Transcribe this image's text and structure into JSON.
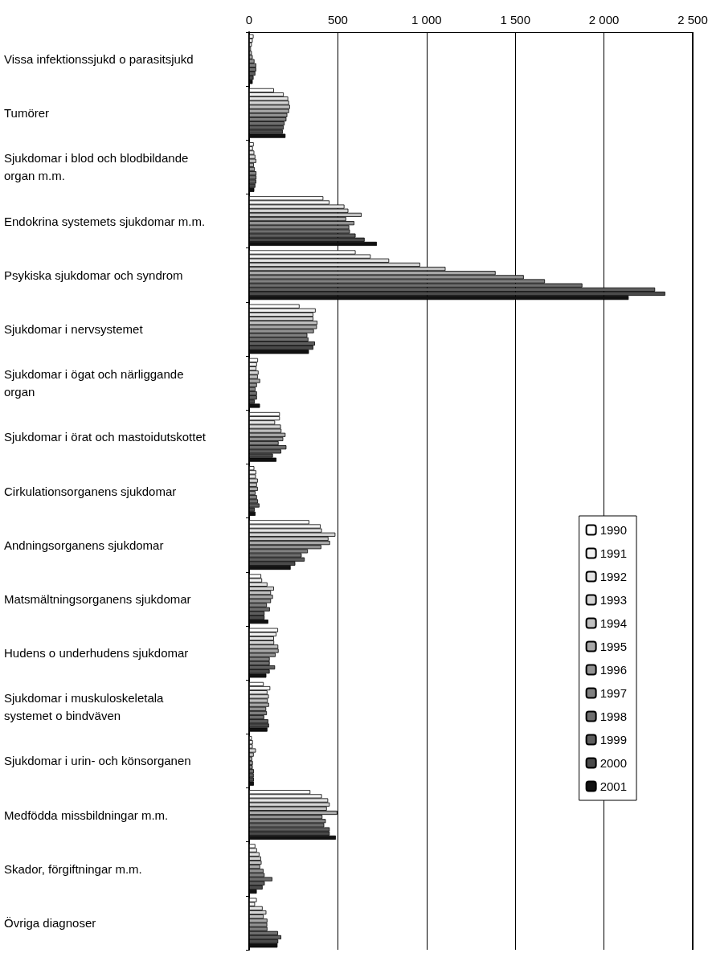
{
  "chart_data": {
    "type": "bar",
    "orientation": "horizontal",
    "categories": [
      "Vissa infektionssjukd o parasitsjukd",
      "Tumörer",
      "Sjukdomar i blod och blodbildande organ m.m.",
      "Endokrina systemets sjukdomar m.m.",
      "Psykiska sjukdomar och syndrom",
      "Sjukdomar i nervsystemet",
      "Sjukdomar i ögat och närliggande organ",
      "Sjukdomar i örat och mastoidutskottet",
      "Cirkulationsorganens sjukdomar",
      "Andningsorganens sjukdomar",
      "Matsmältningsorganens sjukdomar",
      "Hudens o underhudens sjukdomar",
      "Sjukdomar i muskuloskeletala systemet o bindväven",
      "Sjukdomar i urin- och könsorganen",
      "Medfödda missbildningar m.m.",
      "Skador, förgiftningar m.m.",
      "Övriga diagnoser"
    ],
    "series": [
      {
        "name": "1990",
        "color": "#ffffff",
        "values": [
          25,
          140,
          26,
          418,
          600,
          284,
          50,
          173,
          29,
          339,
          68,
          163,
          82,
          15,
          345,
          35,
          43
        ]
      },
      {
        "name": "1991",
        "color": "#f2f2f2",
        "values": [
          20,
          195,
          21,
          453,
          685,
          375,
          44,
          173,
          40,
          403,
          73,
          154,
          119,
          21,
          410,
          44,
          33
        ]
      },
      {
        "name": "1992",
        "color": "#e4e4e4",
        "values": [
          15,
          220,
          29,
          537,
          789,
          362,
          41,
          146,
          38,
          410,
          103,
          140,
          103,
          20,
          445,
          58,
          76
        ]
      },
      {
        "name": "1993",
        "color": "#d4d4d4",
        "values": [
          10,
          225,
          35,
          559,
          964,
          362,
          53,
          179,
          49,
          486,
          140,
          141,
          111,
          38,
          454,
          67,
          97
        ]
      },
      {
        "name": "1994",
        "color": "#c0c0c0",
        "values": [
          15,
          230,
          40,
          634,
          1107,
          385,
          49,
          182,
          44,
          447,
          123,
          164,
          105,
          26,
          438,
          70,
          82
        ]
      },
      {
        "name": "1995",
        "color": "#a8a8a8",
        "values": [
          20,
          225,
          27,
          547,
          1389,
          382,
          62,
          205,
          49,
          456,
          134,
          166,
          112,
          17,
          497,
          62,
          103
        ]
      },
      {
        "name": "1996",
        "color": "#929292",
        "values": [
          30,
          215,
          32,
          593,
          1548,
          365,
          44,
          192,
          36,
          407,
          123,
          149,
          96,
          21,
          413,
          81,
          102
        ]
      },
      {
        "name": "1997",
        "color": "#808080",
        "values": [
          40,
          210,
          41,
          564,
          1667,
          328,
          36,
          166,
          44,
          331,
          100,
          116,
          100,
          20,
          432,
          87,
          103
        ]
      },
      {
        "name": "1998",
        "color": "#6e6e6e",
        "values": [
          40,
          200,
          41,
          568,
          1878,
          334,
          44,
          210,
          50,
          296,
          117,
          116,
          85,
          27,
          423,
          131,
          163
        ]
      },
      {
        "name": "1999",
        "color": "#5e5e5e",
        "values": [
          35,
          195,
          40,
          600,
          2288,
          371,
          44,
          181,
          58,
          313,
          87,
          146,
          108,
          26,
          454,
          88,
          181
        ]
      },
      {
        "name": "2000",
        "color": "#4a4a4a",
        "values": [
          25,
          190,
          35,
          651,
          2345,
          362,
          32,
          134,
          32,
          260,
          87,
          116,
          112,
          27,
          454,
          76,
          164
        ]
      },
      {
        "name": "2001",
        "color": "#111111",
        "values": [
          20,
          205,
          29,
          720,
          2139,
          337,
          61,
          154,
          36,
          234,
          108,
          97,
          103,
          27,
          489,
          43,
          160
        ]
      }
    ],
    "xlim": [
      0,
      2500
    ],
    "xticks": [
      0,
      500,
      {
        "value": 1000,
        "label": "1 000"
      },
      {
        "value": 1500,
        "label": "1 500"
      },
      {
        "value": 2000,
        "label": "2 000"
      },
      {
        "value": 2500,
        "label": "2 500"
      }
    ],
    "grid": "x",
    "legend": "bottom right"
  }
}
